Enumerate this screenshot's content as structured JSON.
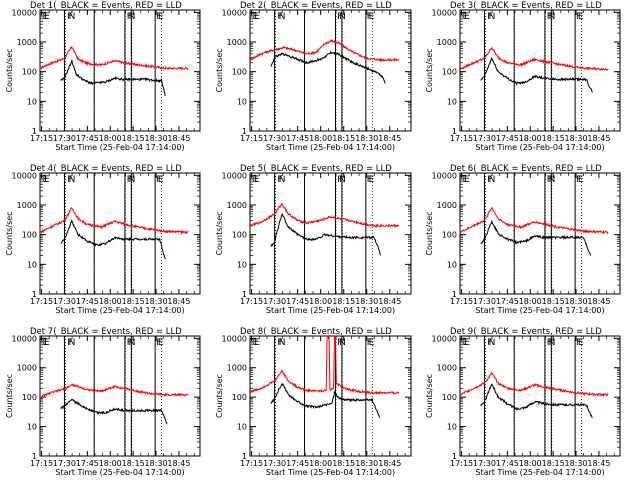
{
  "figure": {
    "background": "#ffffff",
    "colors": {
      "events": "#000000",
      "lld": "#ff0000",
      "frame": "#000000"
    }
  },
  "chart_data": {
    "type": "line",
    "shared": {
      "x_ticks": [
        "17:15",
        "17:30",
        "17:45",
        "18:00",
        "18:15",
        "18:30",
        "18:45"
      ],
      "x_tick_hours": [
        17.25,
        17.5,
        17.75,
        18.0,
        18.25,
        18.5,
        18.75
      ],
      "xlim": [
        17.233,
        18.98
      ],
      "y_ticks": [
        "1",
        "10",
        "100",
        "1000",
        "10000"
      ],
      "y_tick_values": [
        1,
        10,
        100,
        1000,
        10000
      ],
      "ylim": [
        1,
        12000
      ],
      "yscale": "log",
      "ylabel": "Counts/sec",
      "xlabel": "Start Time (25-Feb-04 17:14:00)",
      "grid": false,
      "flag_letters": [
        "E",
        "E",
        "F",
        "N",
        "F",
        "N",
        "F",
        "E"
      ],
      "solid_lines": [
        17.5,
        17.825,
        18.16,
        18.23,
        18.49
      ],
      "dotted_lines": [
        17.51,
        17.825,
        18.165,
        18.235,
        18.56
      ]
    },
    "panels": [
      {
        "title": "Det 1(_BLACK = Events, RED = LLD",
        "events_start": 17.46,
        "events_end": 18.6,
        "lld_start": 17.233,
        "lld_end": 18.85,
        "events": [
          [
            17.46,
            50
          ],
          [
            17.5,
            60
          ],
          [
            17.58,
            230
          ],
          [
            17.63,
            80
          ],
          [
            17.72,
            50
          ],
          [
            17.8,
            40
          ],
          [
            17.95,
            45
          ],
          [
            18.05,
            60
          ],
          [
            18.15,
            55
          ],
          [
            18.25,
            55
          ],
          [
            18.4,
            55
          ],
          [
            18.5,
            50
          ],
          [
            18.56,
            50
          ],
          [
            18.58,
            30
          ],
          [
            18.6,
            15
          ]
        ],
        "lld": [
          [
            17.233,
            130
          ],
          [
            17.35,
            190
          ],
          [
            17.5,
            280
          ],
          [
            17.58,
            700
          ],
          [
            17.65,
            260
          ],
          [
            17.75,
            190
          ],
          [
            17.9,
            170
          ],
          [
            18.05,
            230
          ],
          [
            18.15,
            200
          ],
          [
            18.3,
            170
          ],
          [
            18.45,
            150
          ],
          [
            18.6,
            130
          ],
          [
            18.85,
            130
          ]
        ]
      },
      {
        "title": "Det 2(_BLACK = Events, RED = LLD",
        "events_start": 17.46,
        "events_end": 18.7,
        "lld_start": 17.233,
        "lld_end": 18.85,
        "events": [
          [
            17.46,
            150
          ],
          [
            17.5,
            300
          ],
          [
            17.58,
            400
          ],
          [
            17.7,
            300
          ],
          [
            17.85,
            200
          ],
          [
            18.0,
            260
          ],
          [
            18.12,
            450
          ],
          [
            18.2,
            380
          ],
          [
            18.35,
            200
          ],
          [
            18.5,
            130
          ],
          [
            18.62,
            90
          ],
          [
            18.68,
            60
          ],
          [
            18.7,
            40
          ]
        ],
        "lld": [
          [
            17.233,
            250
          ],
          [
            17.35,
            400
          ],
          [
            17.5,
            550
          ],
          [
            17.6,
            650
          ],
          [
            17.7,
            550
          ],
          [
            17.85,
            400
          ],
          [
            17.95,
            450
          ],
          [
            18.05,
            900
          ],
          [
            18.12,
            1100
          ],
          [
            18.2,
            900
          ],
          [
            18.35,
            450
          ],
          [
            18.5,
            280
          ],
          [
            18.65,
            250
          ],
          [
            18.85,
            250
          ]
        ]
      },
      {
        "title": "Det 3(_BLACK = Events, RED = LLD",
        "events_start": 17.46,
        "events_end": 18.68,
        "lld_start": 17.233,
        "lld_end": 18.85,
        "events": [
          [
            17.46,
            50
          ],
          [
            17.5,
            70
          ],
          [
            17.58,
            280
          ],
          [
            17.65,
            100
          ],
          [
            17.75,
            60
          ],
          [
            17.85,
            40
          ],
          [
            17.95,
            45
          ],
          [
            18.05,
            70
          ],
          [
            18.15,
            60
          ],
          [
            18.3,
            55
          ],
          [
            18.45,
            55
          ],
          [
            18.58,
            55
          ],
          [
            18.62,
            50
          ],
          [
            18.65,
            30
          ],
          [
            18.68,
            20
          ]
        ],
        "lld": [
          [
            17.233,
            120
          ],
          [
            17.35,
            180
          ],
          [
            17.5,
            280
          ],
          [
            17.58,
            650
          ],
          [
            17.65,
            300
          ],
          [
            17.75,
            200
          ],
          [
            17.9,
            170
          ],
          [
            18.05,
            260
          ],
          [
            18.15,
            220
          ],
          [
            18.3,
            180
          ],
          [
            18.45,
            150
          ],
          [
            18.6,
            130
          ],
          [
            18.85,
            120
          ]
        ]
      },
      {
        "title": "Det 4(_BLACK = Events, RED = LLD",
        "events_start": 17.46,
        "events_end": 18.6,
        "lld_start": 17.233,
        "lld_end": 18.85,
        "events": [
          [
            17.46,
            50
          ],
          [
            17.5,
            70
          ],
          [
            17.58,
            280
          ],
          [
            17.65,
            100
          ],
          [
            17.75,
            60
          ],
          [
            17.85,
            45
          ],
          [
            17.95,
            50
          ],
          [
            18.05,
            80
          ],
          [
            18.15,
            70
          ],
          [
            18.3,
            70
          ],
          [
            18.45,
            70
          ],
          [
            18.54,
            70
          ],
          [
            18.56,
            40
          ],
          [
            18.6,
            15
          ]
        ],
        "lld": [
          [
            17.233,
            120
          ],
          [
            17.35,
            180
          ],
          [
            17.5,
            300
          ],
          [
            17.58,
            800
          ],
          [
            17.65,
            350
          ],
          [
            17.75,
            220
          ],
          [
            17.9,
            180
          ],
          [
            18.05,
            280
          ],
          [
            18.15,
            230
          ],
          [
            18.3,
            180
          ],
          [
            18.45,
            150
          ],
          [
            18.6,
            130
          ],
          [
            18.85,
            120
          ]
        ]
      },
      {
        "title": "Det 5(_BLACK = Events, RED = LLD",
        "events_start": 17.46,
        "events_end": 18.65,
        "lld_start": 17.233,
        "lld_end": 18.85,
        "events": [
          [
            17.46,
            40
          ],
          [
            17.5,
            60
          ],
          [
            17.58,
            500
          ],
          [
            17.65,
            180
          ],
          [
            17.75,
            100
          ],
          [
            17.85,
            70
          ],
          [
            17.95,
            70
          ],
          [
            18.05,
            100
          ],
          [
            18.15,
            90
          ],
          [
            18.3,
            80
          ],
          [
            18.45,
            80
          ],
          [
            18.58,
            80
          ],
          [
            18.62,
            40
          ],
          [
            18.65,
            20
          ]
        ],
        "lld": [
          [
            17.233,
            200
          ],
          [
            17.35,
            260
          ],
          [
            17.5,
            500
          ],
          [
            17.58,
            1100
          ],
          [
            17.65,
            500
          ],
          [
            17.75,
            300
          ],
          [
            17.85,
            250
          ],
          [
            18.0,
            300
          ],
          [
            18.1,
            400
          ],
          [
            18.2,
            350
          ],
          [
            18.35,
            280
          ],
          [
            18.5,
            220
          ],
          [
            18.6,
            200
          ],
          [
            18.85,
            200
          ]
        ]
      },
      {
        "title": "Det 6(_BLACK = Events, RED = LLD",
        "events_start": 17.46,
        "events_end": 18.66,
        "lld_start": 17.233,
        "lld_end": 18.85,
        "events": [
          [
            17.46,
            50
          ],
          [
            17.5,
            70
          ],
          [
            17.58,
            280
          ],
          [
            17.65,
            110
          ],
          [
            17.75,
            70
          ],
          [
            17.85,
            55
          ],
          [
            17.95,
            60
          ],
          [
            18.05,
            90
          ],
          [
            18.15,
            80
          ],
          [
            18.3,
            80
          ],
          [
            18.45,
            80
          ],
          [
            18.58,
            80
          ],
          [
            18.62,
            40
          ],
          [
            18.66,
            20
          ]
        ],
        "lld": [
          [
            17.233,
            120
          ],
          [
            17.35,
            180
          ],
          [
            17.5,
            300
          ],
          [
            17.58,
            800
          ],
          [
            17.65,
            350
          ],
          [
            17.75,
            220
          ],
          [
            17.9,
            180
          ],
          [
            18.05,
            270
          ],
          [
            18.15,
            230
          ],
          [
            18.3,
            180
          ],
          [
            18.45,
            150
          ],
          [
            18.6,
            130
          ],
          [
            18.85,
            120
          ]
        ]
      },
      {
        "title": "Det 7(_BLACK = Events, RED = LLD",
        "events_start": 17.46,
        "events_end": 18.62,
        "lld_start": 17.233,
        "lld_end": 18.85,
        "events": [
          [
            17.46,
            40
          ],
          [
            17.5,
            50
          ],
          [
            17.58,
            80
          ],
          [
            17.65,
            60
          ],
          [
            17.75,
            40
          ],
          [
            17.85,
            30
          ],
          [
            17.95,
            30
          ],
          [
            18.05,
            40
          ],
          [
            18.15,
            35
          ],
          [
            18.3,
            35
          ],
          [
            18.45,
            35
          ],
          [
            18.56,
            35
          ],
          [
            18.58,
            25
          ],
          [
            18.62,
            12
          ]
        ],
        "lld": [
          [
            17.233,
            100
          ],
          [
            17.35,
            140
          ],
          [
            17.5,
            190
          ],
          [
            17.58,
            260
          ],
          [
            17.65,
            230
          ],
          [
            17.75,
            180
          ],
          [
            17.9,
            160
          ],
          [
            18.05,
            230
          ],
          [
            18.15,
            200
          ],
          [
            18.3,
            160
          ],
          [
            18.45,
            130
          ],
          [
            18.6,
            120
          ],
          [
            18.85,
            120
          ]
        ]
      },
      {
        "title": "Det 8(_BLACK = Events, RED = LLD",
        "events_start": 17.46,
        "events_end": 18.64,
        "lld_start": 17.233,
        "lld_end": 18.85,
        "events": [
          [
            17.46,
            60
          ],
          [
            17.5,
            90
          ],
          [
            17.58,
            300
          ],
          [
            17.65,
            120
          ],
          [
            17.75,
            70
          ],
          [
            17.85,
            50
          ],
          [
            17.95,
            45
          ],
          [
            18.05,
            55
          ],
          [
            18.12,
            60
          ],
          [
            18.15,
            150
          ],
          [
            18.2,
            90
          ],
          [
            18.3,
            80
          ],
          [
            18.45,
            80
          ],
          [
            18.56,
            80
          ],
          [
            18.6,
            40
          ],
          [
            18.64,
            20
          ]
        ],
        "lld": [
          [
            17.233,
            150
          ],
          [
            17.35,
            200
          ],
          [
            17.5,
            350
          ],
          [
            17.58,
            800
          ],
          [
            17.65,
            350
          ],
          [
            17.75,
            220
          ],
          [
            17.85,
            170
          ],
          [
            18.0,
            160
          ],
          [
            18.06,
            170
          ],
          [
            18.07,
            12000
          ],
          [
            18.09,
            12000
          ],
          [
            18.1,
            180
          ],
          [
            18.14,
            200
          ],
          [
            18.15,
            12000
          ],
          [
            18.16,
            12000
          ],
          [
            18.17,
            300
          ],
          [
            18.25,
            200
          ],
          [
            18.4,
            160
          ],
          [
            18.55,
            140
          ],
          [
            18.85,
            140
          ]
        ]
      },
      {
        "title": "Det 9(_BLACK = Events, RED = LLD",
        "events_start": 17.46,
        "events_end": 18.68,
        "lld_start": 17.233,
        "lld_end": 18.85,
        "events": [
          [
            17.46,
            50
          ],
          [
            17.5,
            70
          ],
          [
            17.58,
            280
          ],
          [
            17.65,
            100
          ],
          [
            17.75,
            60
          ],
          [
            17.85,
            40
          ],
          [
            17.95,
            45
          ],
          [
            18.05,
            70
          ],
          [
            18.15,
            60
          ],
          [
            18.3,
            55
          ],
          [
            18.45,
            55
          ],
          [
            18.58,
            55
          ],
          [
            18.62,
            50
          ],
          [
            18.65,
            30
          ],
          [
            18.68,
            20
          ]
        ],
        "lld": [
          [
            17.233,
            120
          ],
          [
            17.35,
            180
          ],
          [
            17.5,
            300
          ],
          [
            17.58,
            650
          ],
          [
            17.65,
            300
          ],
          [
            17.75,
            200
          ],
          [
            17.9,
            170
          ],
          [
            18.05,
            260
          ],
          [
            18.15,
            220
          ],
          [
            18.3,
            180
          ],
          [
            18.45,
            150
          ],
          [
            18.6,
            130
          ],
          [
            18.85,
            120
          ]
        ]
      }
    ]
  }
}
